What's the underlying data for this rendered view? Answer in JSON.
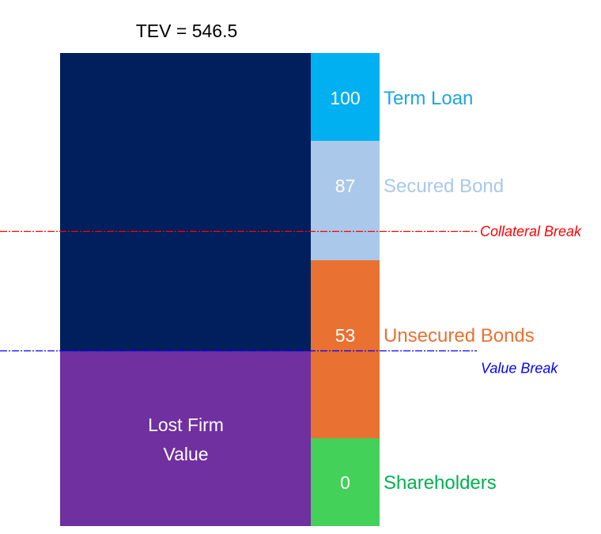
{
  "chart_data": {
    "type": "bar",
    "title": "TEV = 546.5",
    "ylim": [
      0,
      1
    ],
    "enterprise_value": {
      "color": "#001f5c",
      "top_fraction": 1.0,
      "bottom_fraction": 0.3696
    },
    "lost_value": {
      "lines": [
        "Lost Firm",
        "Value"
      ],
      "color": "#7030a0",
      "top_fraction": 0.3696,
      "bottom_fraction": 0.0
    },
    "tranches": [
      {
        "name": "Term Loan",
        "value": "100",
        "bar_color": "#00b0f0",
        "label_color": "#1ea7de",
        "top_fraction": 1.0,
        "bottom_fraction": 0.8144
      },
      {
        "name": "Secured Bond",
        "value": "87",
        "bar_color": "#a9c8ea",
        "label_color": "#a9c8ea",
        "top_fraction": 0.8144,
        "bottom_fraction": 0.5619
      },
      {
        "name": "Unsecured Bonds",
        "value": "53",
        "bar_color": "#e97132",
        "label_color": "#e97132",
        "top_fraction": 0.5619,
        "bottom_fraction": 0.1856
      },
      {
        "name": "Shareholders",
        "value": "0",
        "bar_color": "#43d159",
        "label_color": "#00b050",
        "top_fraction": 0.1856,
        "bottom_fraction": 0.0
      }
    ],
    "breaks": [
      {
        "name": "Collateral Break",
        "color": "#ff0000",
        "level_fraction": 0.6236,
        "label_side": "right"
      },
      {
        "name": "Value Break",
        "color": "#0000ff",
        "level_fraction": 0.3712,
        "label_side": "below"
      }
    ]
  }
}
